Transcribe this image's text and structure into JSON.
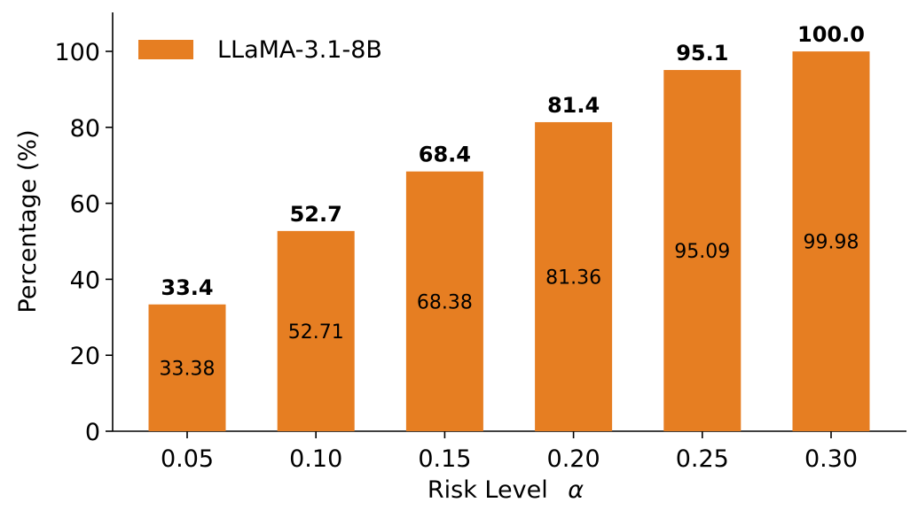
{
  "chart_data": {
    "type": "bar",
    "title": "",
    "xlabel": "Risk Level",
    "xlabel_symbol": "α",
    "ylabel": "Percentage (%)",
    "ylim": [
      0,
      110
    ],
    "yticks": [
      "0",
      "20",
      "40",
      "60",
      "80",
      "100"
    ],
    "ytick_values": [
      0,
      20,
      40,
      60,
      80,
      100
    ],
    "categories": [
      "0.05",
      "0.10",
      "0.15",
      "0.20",
      "0.25",
      "0.30"
    ],
    "series": [
      {
        "name": "LLaMA-3.1-8B",
        "color": "#e67e22",
        "values": [
          33.38,
          52.71,
          68.38,
          81.36,
          95.09,
          99.98
        ],
        "top_labels": [
          "33.4",
          "52.7",
          "68.4",
          "81.4",
          "95.1",
          "100.0"
        ],
        "inner_labels": [
          "33.38",
          "52.71",
          "68.38",
          "81.36",
          "95.09",
          "99.98"
        ]
      }
    ],
    "legend": {
      "position": "top-left",
      "entries": [
        "LLaMA-3.1-8B"
      ]
    },
    "grid": false
  }
}
